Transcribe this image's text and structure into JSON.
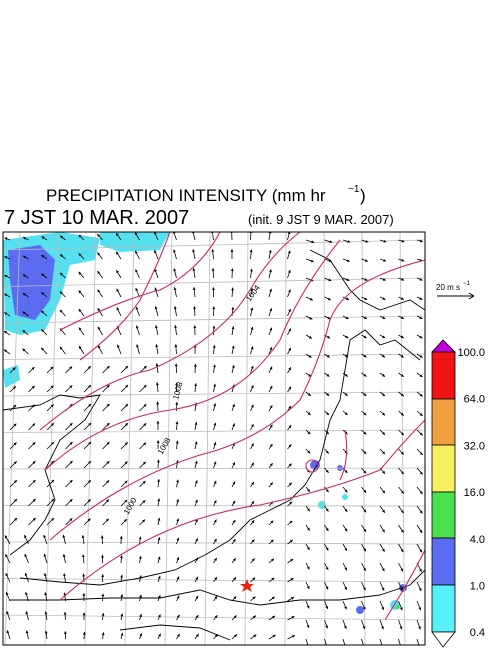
{
  "header": {
    "title": "PRECIPITATION INTENSITY (mm hr",
    "title_exponent": "−1",
    "title_end": ")",
    "valid_time": "7 JST 10 MAR. 2007",
    "init_time": "(init. 9 JST 9 MAR. 2007)"
  },
  "vector_legend": {
    "label": "20 m s",
    "label_exponent": "−1"
  },
  "isobar_labels": [
    "1004",
    "1008",
    "1008",
    "1000"
  ],
  "colorbar": {
    "labels": [
      "100.0",
      "64.0",
      "32.0",
      "16.0",
      "4.0",
      "1.0",
      "0.4"
    ]
  }
}
